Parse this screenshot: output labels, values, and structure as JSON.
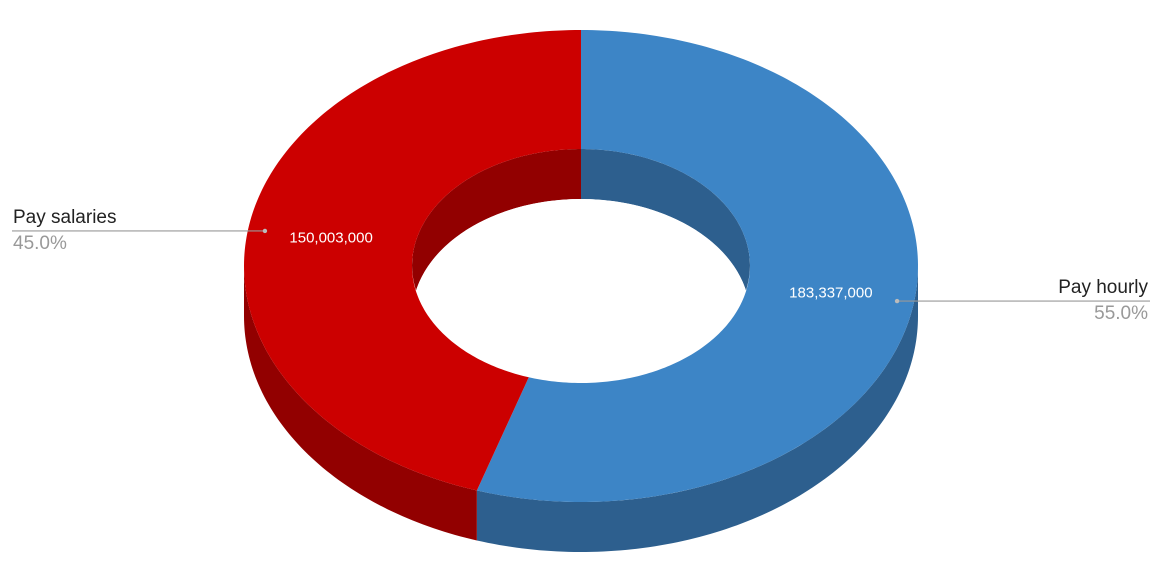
{
  "chart_data": {
    "type": "pie",
    "donut": true,
    "three_d": true,
    "categories": [
      "Pay hourly",
      "Pay salaries"
    ],
    "values": [
      183337000,
      150003000
    ],
    "value_labels": [
      "183,337,000",
      "150,003,000"
    ],
    "percent_labels": [
      "55.0%",
      "45.0%"
    ],
    "colors": [
      "#3d85c6",
      "#cc0000"
    ],
    "side_colors": [
      "#2d5f8e",
      "#920000"
    ]
  }
}
